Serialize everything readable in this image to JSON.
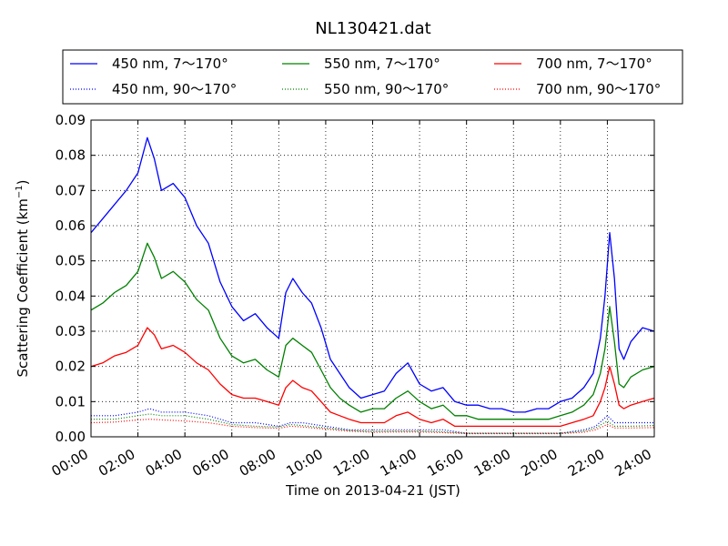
{
  "chart_data": {
    "type": "line",
    "title": "NL130421.dat",
    "xlabel": "Time on 2013-04-21 (JST)",
    "ylabel_prefix": "Scattering Coefficient (km",
    "ylabel_sup": "−1",
    "ylabel_suffix": ")",
    "xlim": [
      0,
      24
    ],
    "ylim": [
      0,
      0.09
    ],
    "grid": true,
    "legend_position": "top",
    "x_ticks": [
      0,
      2,
      4,
      6,
      8,
      10,
      12,
      14,
      16,
      18,
      20,
      22,
      24
    ],
    "x_tick_labels": [
      "00:00",
      "02:00",
      "04:00",
      "06:00",
      "08:00",
      "10:00",
      "12:00",
      "14:00",
      "16:00",
      "18:00",
      "20:00",
      "22:00",
      "24:00"
    ],
    "y_ticks": [
      0,
      0.01,
      0.02,
      0.03,
      0.04,
      0.05,
      0.06,
      0.07,
      0.08,
      0.09
    ],
    "y_tick_labels": [
      "0.00",
      "0.01",
      "0.02",
      "0.03",
      "0.04",
      "0.05",
      "0.06",
      "0.07",
      "0.08",
      "0.09"
    ],
    "series": [
      {
        "name": "450 nm, 7～170°",
        "color": "#0000ff",
        "style": "solid",
        "x": [
          0,
          0.5,
          1.0,
          1.5,
          2.0,
          2.4,
          2.7,
          3.0,
          3.5,
          4.0,
          4.5,
          5.0,
          5.5,
          6.0,
          6.5,
          7.0,
          7.5,
          8.0,
          8.3,
          8.6,
          9.0,
          9.4,
          9.8,
          10.2,
          10.6,
          11.0,
          11.5,
          12.0,
          12.5,
          13.0,
          13.5,
          14.0,
          14.5,
          15.0,
          15.5,
          16.0,
          16.5,
          17.0,
          17.5,
          18.0,
          18.5,
          19.0,
          19.5,
          20.0,
          20.5,
          21.0,
          21.4,
          21.7,
          21.9,
          22.1,
          22.3,
          22.5,
          22.7,
          23.0,
          23.5,
          24.0
        ],
        "y": [
          0.058,
          0.062,
          0.066,
          0.07,
          0.075,
          0.085,
          0.079,
          0.07,
          0.072,
          0.068,
          0.06,
          0.055,
          0.044,
          0.037,
          0.033,
          0.035,
          0.031,
          0.028,
          0.041,
          0.045,
          0.041,
          0.038,
          0.031,
          0.022,
          0.018,
          0.014,
          0.011,
          0.012,
          0.013,
          0.018,
          0.021,
          0.015,
          0.013,
          0.014,
          0.01,
          0.009,
          0.009,
          0.008,
          0.008,
          0.007,
          0.007,
          0.008,
          0.008,
          0.01,
          0.011,
          0.014,
          0.018,
          0.028,
          0.04,
          0.058,
          0.045,
          0.025,
          0.022,
          0.027,
          0.031,
          0.03
        ]
      },
      {
        "name": "550 nm, 7～170°",
        "color": "#008000",
        "style": "solid",
        "x": [
          0,
          0.5,
          1.0,
          1.5,
          2.0,
          2.4,
          2.7,
          3.0,
          3.5,
          4.0,
          4.5,
          5.0,
          5.5,
          6.0,
          6.5,
          7.0,
          7.5,
          8.0,
          8.3,
          8.6,
          9.0,
          9.4,
          9.8,
          10.2,
          10.6,
          11.0,
          11.5,
          12.0,
          12.5,
          13.0,
          13.5,
          14.0,
          14.5,
          15.0,
          15.5,
          16.0,
          16.5,
          17.0,
          17.5,
          18.0,
          18.5,
          19.0,
          19.5,
          20.0,
          20.5,
          21.0,
          21.4,
          21.7,
          21.9,
          22.1,
          22.3,
          22.5,
          22.7,
          23.0,
          23.5,
          24.0
        ],
        "y": [
          0.036,
          0.038,
          0.041,
          0.043,
          0.047,
          0.055,
          0.051,
          0.045,
          0.047,
          0.044,
          0.039,
          0.036,
          0.028,
          0.023,
          0.021,
          0.022,
          0.019,
          0.017,
          0.026,
          0.028,
          0.026,
          0.024,
          0.019,
          0.014,
          0.011,
          0.009,
          0.007,
          0.008,
          0.008,
          0.011,
          0.013,
          0.01,
          0.008,
          0.009,
          0.006,
          0.006,
          0.005,
          0.005,
          0.005,
          0.005,
          0.005,
          0.005,
          0.005,
          0.006,
          0.007,
          0.009,
          0.012,
          0.018,
          0.025,
          0.037,
          0.027,
          0.015,
          0.014,
          0.017,
          0.019,
          0.02
        ]
      },
      {
        "name": "700 nm, 7～170°",
        "color": "#ff0000",
        "style": "solid",
        "x": [
          0,
          0.5,
          1.0,
          1.5,
          2.0,
          2.4,
          2.7,
          3.0,
          3.5,
          4.0,
          4.5,
          5.0,
          5.5,
          6.0,
          6.5,
          7.0,
          7.5,
          8.0,
          8.3,
          8.6,
          9.0,
          9.4,
          9.8,
          10.2,
          10.6,
          11.0,
          11.5,
          12.0,
          12.5,
          13.0,
          13.5,
          14.0,
          14.5,
          15.0,
          15.5,
          16.0,
          16.5,
          17.0,
          17.5,
          18.0,
          18.5,
          19.0,
          19.5,
          20.0,
          20.5,
          21.0,
          21.4,
          21.7,
          21.9,
          22.1,
          22.3,
          22.5,
          22.7,
          23.0,
          23.5,
          24.0
        ],
        "y": [
          0.02,
          0.021,
          0.023,
          0.024,
          0.026,
          0.031,
          0.029,
          0.025,
          0.026,
          0.024,
          0.021,
          0.019,
          0.015,
          0.012,
          0.011,
          0.011,
          0.01,
          0.009,
          0.014,
          0.016,
          0.014,
          0.013,
          0.01,
          0.007,
          0.006,
          0.005,
          0.004,
          0.004,
          0.004,
          0.006,
          0.007,
          0.005,
          0.004,
          0.005,
          0.003,
          0.003,
          0.003,
          0.003,
          0.003,
          0.003,
          0.003,
          0.003,
          0.003,
          0.003,
          0.004,
          0.005,
          0.006,
          0.01,
          0.014,
          0.02,
          0.015,
          0.009,
          0.008,
          0.009,
          0.01,
          0.011
        ]
      },
      {
        "name": "450 nm, 90～170°",
        "color": "#0000ff",
        "style": "dotted",
        "x": [
          0,
          1,
          2,
          2.5,
          3,
          4,
          5,
          6,
          7,
          8,
          8.5,
          9,
          10,
          11,
          12,
          13,
          14,
          15,
          16,
          17,
          18,
          19,
          20,
          21,
          21.5,
          22,
          22.3,
          23,
          24
        ],
        "y": [
          0.006,
          0.006,
          0.007,
          0.008,
          0.007,
          0.007,
          0.006,
          0.004,
          0.004,
          0.003,
          0.004,
          0.004,
          0.003,
          0.002,
          0.002,
          0.002,
          0.002,
          0.002,
          0.001,
          0.001,
          0.001,
          0.001,
          0.001,
          0.002,
          0.003,
          0.006,
          0.004,
          0.004,
          0.004
        ]
      },
      {
        "name": "550 nm, 90～170°",
        "color": "#008000",
        "style": "dotted",
        "x": [
          0,
          1,
          2,
          2.5,
          3,
          4,
          5,
          6,
          7,
          8,
          8.5,
          9,
          10,
          11,
          12,
          13,
          14,
          15,
          16,
          17,
          18,
          19,
          20,
          21,
          21.5,
          22,
          22.3,
          23,
          24
        ],
        "y": [
          0.005,
          0.005,
          0.006,
          0.0065,
          0.006,
          0.006,
          0.005,
          0.0035,
          0.003,
          0.0028,
          0.0035,
          0.0032,
          0.0025,
          0.0018,
          0.0015,
          0.0016,
          0.0016,
          0.0014,
          0.001,
          0.001,
          0.001,
          0.001,
          0.001,
          0.0016,
          0.0025,
          0.0045,
          0.003,
          0.003,
          0.0032
        ]
      },
      {
        "name": "700 nm, 90～170°",
        "color": "#ff0000",
        "style": "dotted",
        "x": [
          0,
          1,
          2,
          2.5,
          3,
          4,
          5,
          6,
          7,
          8,
          8.5,
          9,
          10,
          11,
          12,
          13,
          14,
          15,
          16,
          17,
          18,
          19,
          20,
          21,
          21.5,
          22,
          22.3,
          23,
          24
        ],
        "y": [
          0.004,
          0.0042,
          0.0048,
          0.005,
          0.0048,
          0.0045,
          0.004,
          0.003,
          0.0026,
          0.0024,
          0.003,
          0.0028,
          0.0022,
          0.0016,
          0.0013,
          0.0014,
          0.0014,
          0.0012,
          0.0009,
          0.0009,
          0.0009,
          0.0009,
          0.0009,
          0.0013,
          0.002,
          0.0035,
          0.0025,
          0.0025,
          0.0026
        ]
      }
    ]
  }
}
